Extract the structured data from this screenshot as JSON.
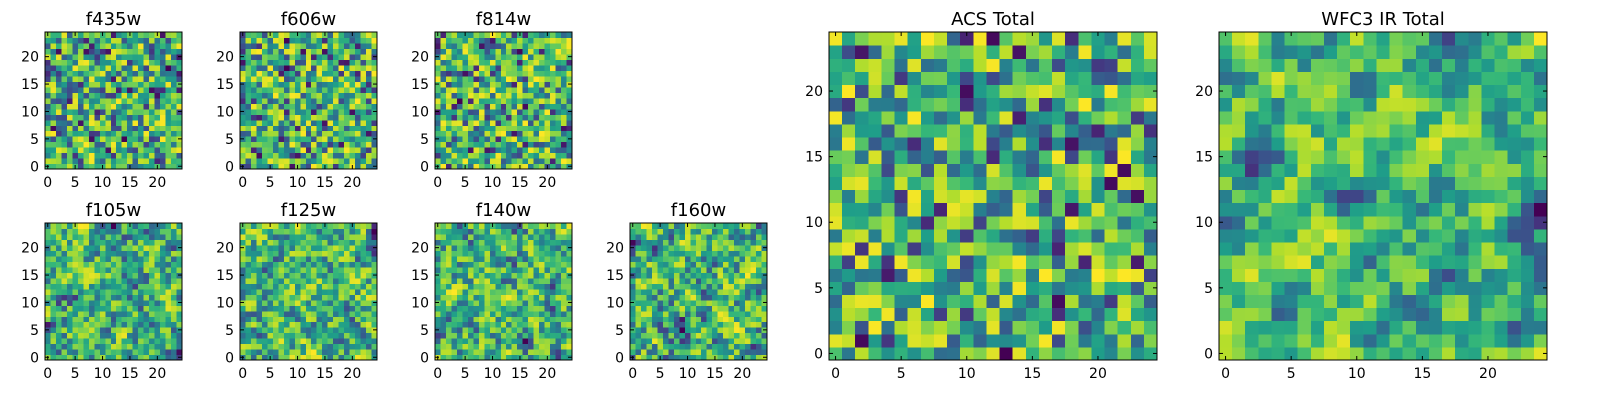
{
  "chart_data": [
    {
      "type": "heatmap",
      "title": "f435w",
      "xticks": [
        "0",
        "5",
        "10",
        "15",
        "20"
      ],
      "yticks": [
        "0",
        "5",
        "10",
        "15",
        "20"
      ],
      "xlim": [
        -0.5,
        24.5
      ],
      "ylim": [
        -0.5,
        24.5
      ],
      "grid_size": 25,
      "colormap": "viridis",
      "seed": 11,
      "smooth": 0
    },
    {
      "type": "heatmap",
      "title": "f606w",
      "xticks": [
        "0",
        "5",
        "10",
        "15",
        "20"
      ],
      "yticks": [
        "0",
        "5",
        "10",
        "15",
        "20"
      ],
      "xlim": [
        -0.5,
        24.5
      ],
      "ylim": [
        -0.5,
        24.5
      ],
      "grid_size": 25,
      "colormap": "viridis",
      "seed": 23,
      "smooth": 0
    },
    {
      "type": "heatmap",
      "title": "f814w",
      "xticks": [
        "0",
        "5",
        "10",
        "15",
        "20"
      ],
      "yticks": [
        "0",
        "5",
        "10",
        "15",
        "20"
      ],
      "xlim": [
        -0.5,
        24.5
      ],
      "ylim": [
        -0.5,
        24.5
      ],
      "grid_size": 25,
      "colormap": "viridis",
      "seed": 37,
      "smooth": 0
    },
    {
      "type": "heatmap",
      "title": "f105w",
      "xticks": [
        "0",
        "5",
        "10",
        "15",
        "20"
      ],
      "yticks": [
        "0",
        "5",
        "10",
        "15",
        "20"
      ],
      "xlim": [
        -0.5,
        24.5
      ],
      "ylim": [
        -0.5,
        24.5
      ],
      "grid_size": 25,
      "colormap": "viridis",
      "seed": 41,
      "smooth": 1
    },
    {
      "type": "heatmap",
      "title": "f125w",
      "xticks": [
        "0",
        "5",
        "10",
        "15",
        "20"
      ],
      "yticks": [
        "0",
        "5",
        "10",
        "15",
        "20"
      ],
      "xlim": [
        -0.5,
        24.5
      ],
      "ylim": [
        -0.5,
        24.5
      ],
      "grid_size": 25,
      "colormap": "viridis",
      "seed": 53,
      "smooth": 1
    },
    {
      "type": "heatmap",
      "title": "f140w",
      "xticks": [
        "0",
        "5",
        "10",
        "15",
        "20"
      ],
      "yticks": [
        "0",
        "5",
        "10",
        "15",
        "20"
      ],
      "xlim": [
        -0.5,
        24.5
      ],
      "ylim": [
        -0.5,
        24.5
      ],
      "grid_size": 25,
      "colormap": "viridis",
      "seed": 67,
      "smooth": 1
    },
    {
      "type": "heatmap",
      "title": "f160w",
      "xticks": [
        "0",
        "5",
        "10",
        "15",
        "20"
      ],
      "yticks": [
        "0",
        "5",
        "10",
        "15",
        "20"
      ],
      "xlim": [
        -0.5,
        24.5
      ],
      "ylim": [
        -0.5,
        24.5
      ],
      "grid_size": 25,
      "colormap": "viridis",
      "seed": 79,
      "smooth": 1
    },
    {
      "type": "heatmap",
      "title": "ACS Total",
      "xticks": [
        "0",
        "5",
        "10",
        "15",
        "20"
      ],
      "yticks": [
        "0",
        "5",
        "10",
        "15",
        "20"
      ],
      "xlim": [
        -0.5,
        24.5
      ],
      "ylim": [
        -0.5,
        24.5
      ],
      "grid_size": 25,
      "colormap": "viridis",
      "seed": 97,
      "smooth": 0
    },
    {
      "type": "heatmap",
      "title": "WFC3 IR Total",
      "xticks": [
        "0",
        "5",
        "10",
        "15",
        "20"
      ],
      "yticks": [
        "0",
        "5",
        "10",
        "15",
        "20"
      ],
      "xlim": [
        -0.5,
        24.5
      ],
      "ylim": [
        -0.5,
        24.5
      ],
      "grid_size": 25,
      "colormap": "viridis",
      "seed": 113,
      "smooth": 2
    }
  ]
}
